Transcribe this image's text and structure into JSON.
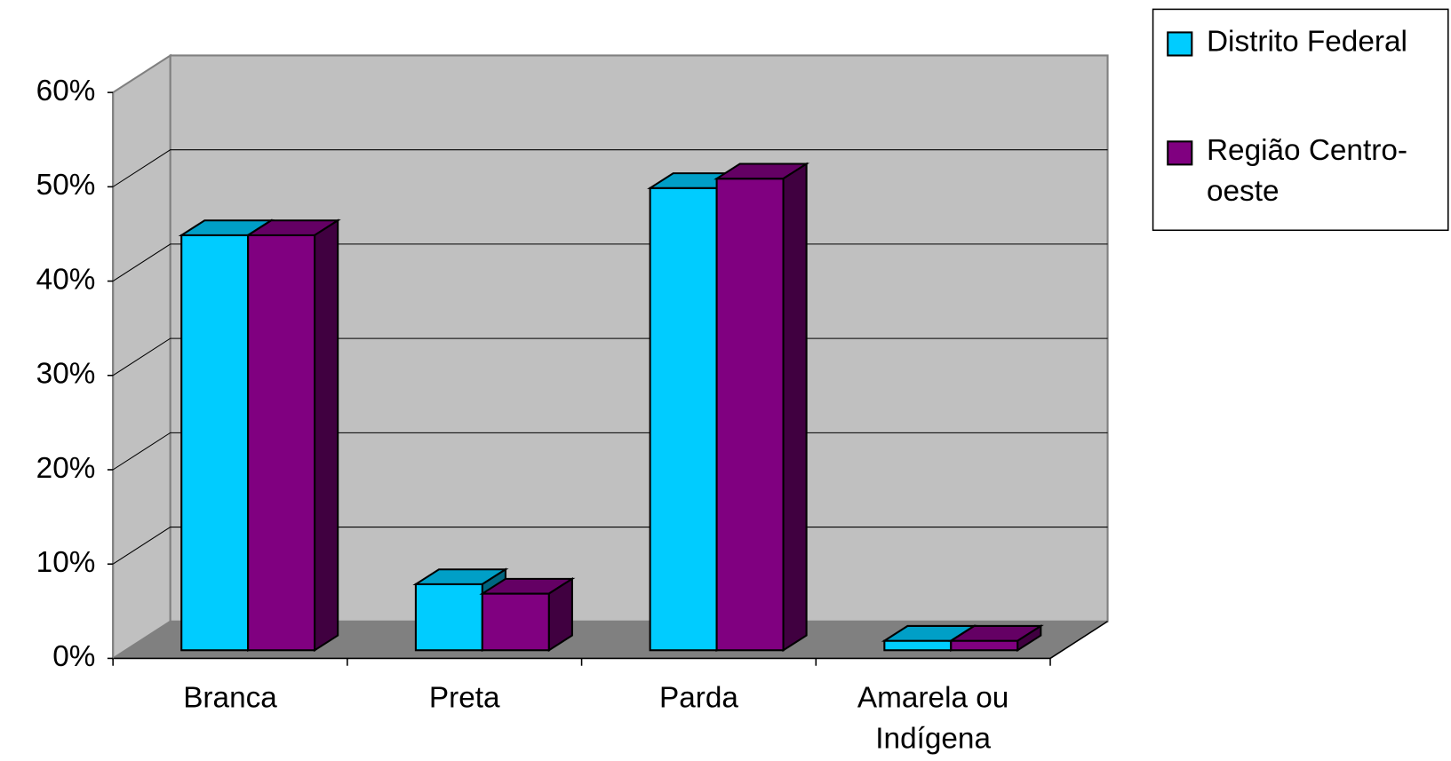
{
  "chart_data": {
    "type": "bar3d",
    "categories": [
      "Branca",
      "Preta",
      "Parda",
      "Amarela ou Indígena"
    ],
    "series": [
      {
        "name": "Distrito Federal",
        "color": "#00ccff",
        "values": [
          44,
          7,
          49,
          1
        ]
      },
      {
        "name": "Região Centro-oeste",
        "color": "#800080",
        "values": [
          44,
          6,
          50,
          1
        ]
      }
    ],
    "ylim": [
      0,
      60
    ],
    "yticks": [
      {
        "value": 0,
        "label": "0%"
      },
      {
        "value": 10,
        "label": "10%"
      },
      {
        "value": 20,
        "label": "20%"
      },
      {
        "value": 30,
        "label": "30%"
      },
      {
        "value": 40,
        "label": "40%"
      },
      {
        "value": 50,
        "label": "50%"
      },
      {
        "value": 60,
        "label": "60%"
      }
    ],
    "grid": true,
    "legend": "right"
  }
}
